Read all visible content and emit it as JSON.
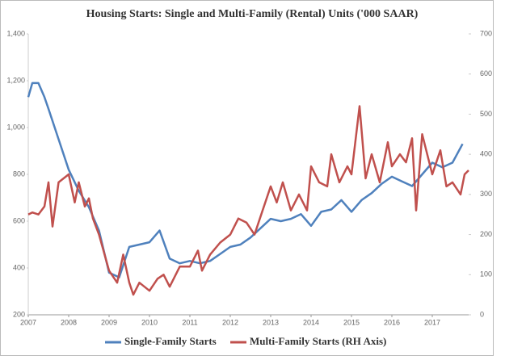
{
  "chart_data": {
    "type": "line",
    "title": "Housing Starts: Single and Multi-Family (Rental) Units  ('000 SAAR)",
    "xlim": [
      2007,
      2017.9
    ],
    "xticks": [
      2007,
      2008,
      2009,
      2010,
      2011,
      2012,
      2013,
      2014,
      2015,
      2016,
      2017
    ],
    "ylim": [
      200,
      1400
    ],
    "yticks": [
      200,
      400,
      600,
      800,
      {
        "value": 1000,
        "label": "1,000"
      },
      {
        "value": 1200,
        "label": "1,200"
      },
      {
        "value": 1400,
        "label": "1,400"
      }
    ],
    "y2lim": [
      0,
      700
    ],
    "y2ticks": [
      0,
      100,
      200,
      300,
      400,
      500,
      600,
      700
    ],
    "series": [
      {
        "name": "Single-Family Starts",
        "color": "#4f81bd",
        "x": [
          2007.0,
          2007.1,
          2007.25,
          2007.4,
          2007.5,
          2007.75,
          2008.0,
          2008.25,
          2008.5,
          2008.75,
          2009.0,
          2009.25,
          2009.5,
          2009.75,
          2010.0,
          2010.25,
          2010.5,
          2010.75,
          2011.0,
          2011.25,
          2011.5,
          2011.75,
          2012.0,
          2012.25,
          2012.5,
          2012.75,
          2013.0,
          2013.25,
          2013.5,
          2013.75,
          2014.0,
          2014.25,
          2014.5,
          2014.75,
          2015.0,
          2015.25,
          2015.5,
          2015.75,
          2016.0,
          2016.25,
          2016.5,
          2016.75,
          2017.0,
          2017.25,
          2017.5,
          2017.75
        ],
        "values": [
          1130,
          1190,
          1190,
          1130,
          1080,
          950,
          820,
          730,
          660,
          560,
          380,
          360,
          490,
          500,
          510,
          560,
          440,
          420,
          430,
          420,
          430,
          460,
          490,
          500,
          530,
          570,
          610,
          600,
          610,
          630,
          580,
          640,
          650,
          690,
          640,
          690,
          720,
          760,
          790,
          770,
          750,
          800,
          850,
          830,
          850,
          930
        ]
      },
      {
        "name": "Multi-Family Starts (RH Axis)",
        "color": "#c0504d",
        "axis": "y2",
        "x": [
          2007.0,
          2007.1,
          2007.25,
          2007.4,
          2007.5,
          2007.6,
          2007.75,
          2008.0,
          2008.15,
          2008.25,
          2008.4,
          2008.5,
          2008.6,
          2008.75,
          2009.0,
          2009.2,
          2009.35,
          2009.5,
          2009.6,
          2009.75,
          2010.0,
          2010.2,
          2010.35,
          2010.5,
          2010.75,
          2011.0,
          2011.2,
          2011.3,
          2011.5,
          2011.75,
          2012.0,
          2012.2,
          2012.4,
          2012.6,
          2012.8,
          2013.0,
          2013.15,
          2013.3,
          2013.5,
          2013.7,
          2013.9,
          2014.0,
          2014.2,
          2014.4,
          2014.5,
          2014.7,
          2014.9,
          2015.0,
          2015.2,
          2015.35,
          2015.5,
          2015.7,
          2015.9,
          2016.0,
          2016.2,
          2016.35,
          2016.5,
          2016.6,
          2016.75,
          2017.0,
          2017.2,
          2017.35,
          2017.5,
          2017.7,
          2017.8,
          2017.9
        ],
        "values": [
          250,
          255,
          250,
          270,
          330,
          220,
          330,
          350,
          280,
          330,
          270,
          290,
          240,
          200,
          110,
          80,
          150,
          80,
          50,
          80,
          60,
          90,
          100,
          70,
          120,
          120,
          160,
          110,
          150,
          180,
          200,
          240,
          230,
          200,
          260,
          320,
          280,
          330,
          260,
          300,
          260,
          370,
          330,
          320,
          400,
          330,
          370,
          350,
          520,
          340,
          400,
          330,
          430,
          370,
          400,
          380,
          440,
          260,
          450,
          350,
          410,
          320,
          330,
          300,
          350,
          360
        ]
      }
    ]
  }
}
